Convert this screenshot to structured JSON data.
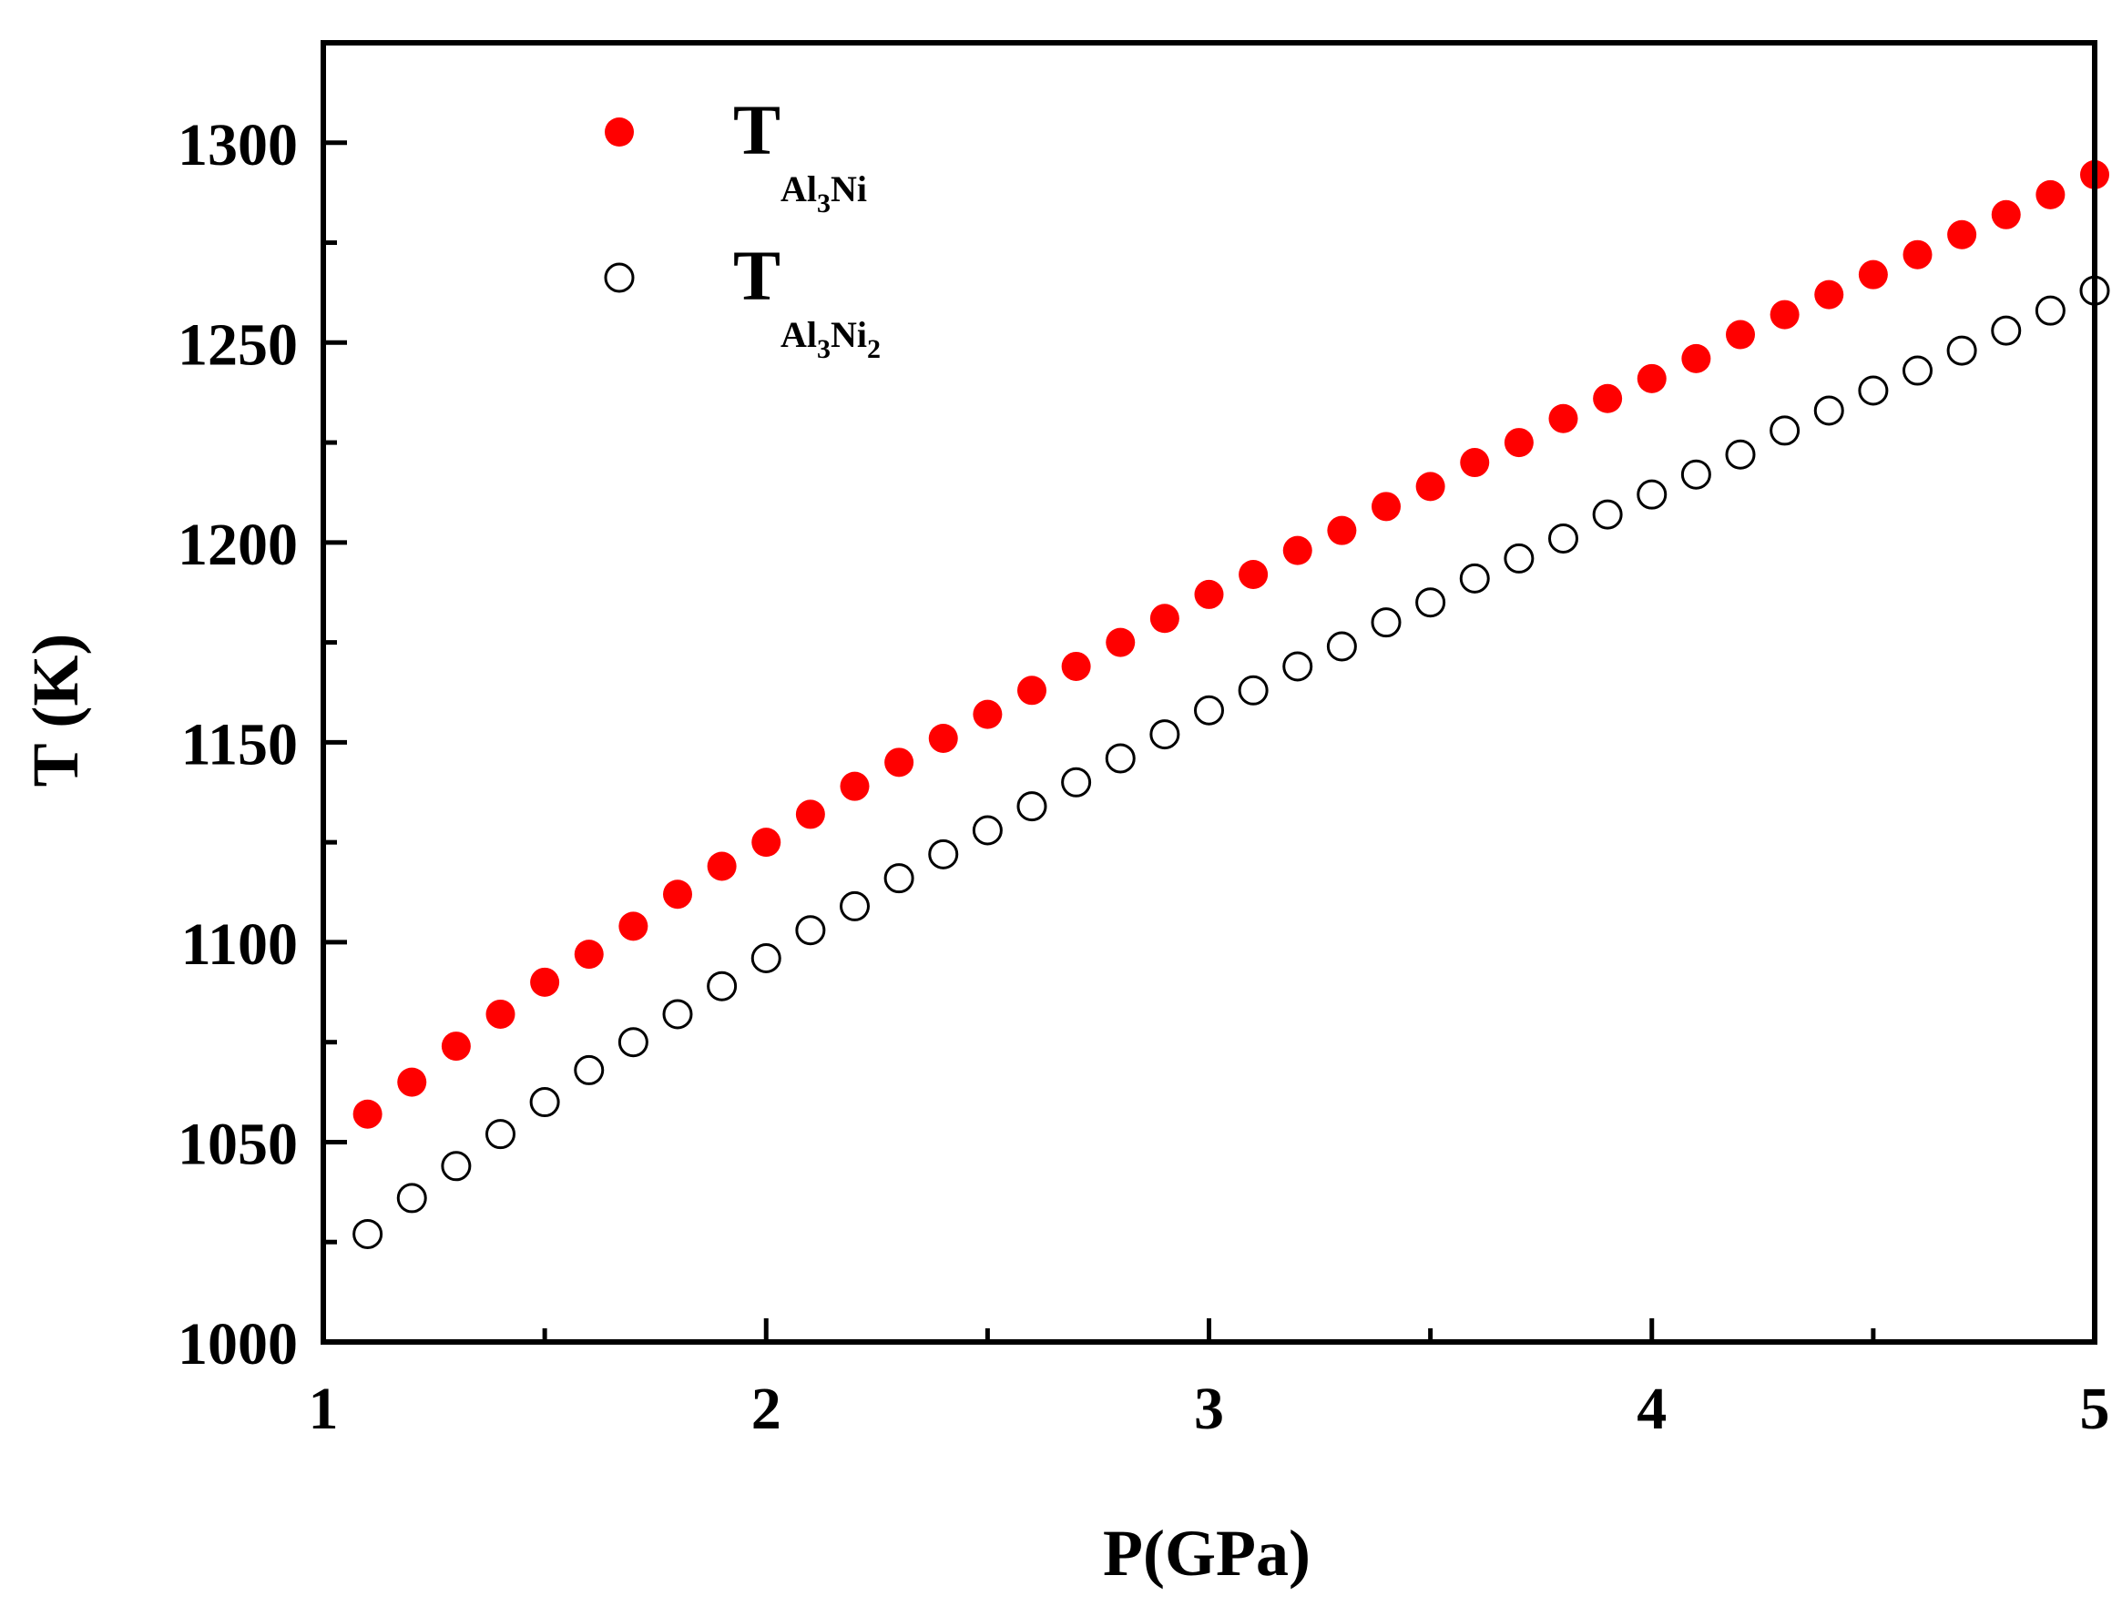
{
  "chart_data": {
    "type": "scatter",
    "title": "",
    "xlabel": "P(GPa)",
    "ylabel": "T (K)",
    "xlim": [
      1,
      5
    ],
    "ylim": [
      1000,
      1325
    ],
    "x_ticks": [
      1,
      2,
      3,
      4,
      5
    ],
    "x_tick_labels": [
      "1",
      "2",
      "3",
      "4",
      "5"
    ],
    "y_ticks": [
      1000,
      1050,
      1100,
      1150,
      1200,
      1250,
      1300
    ],
    "y_tick_labels": [
      "1000",
      "1050",
      "1100",
      "1150",
      "1200",
      "1250",
      "1300"
    ],
    "legend_position": "top-left",
    "series": [
      {
        "name": "TAl3Ni",
        "legend_main": "T",
        "legend_parts": [
          {
            "text": "Al",
            "shift": "sub"
          },
          {
            "text": "3",
            "shift": "subsub"
          },
          {
            "text": "Ni",
            "shift": "sub"
          }
        ],
        "marker": "filled-circle",
        "color": "#ff0000",
        "x": [
          1.1,
          1.2,
          1.3,
          1.4,
          1.5,
          1.6,
          1.7,
          1.8,
          1.9,
          2.0,
          2.1,
          2.2,
          2.3,
          2.4,
          2.5,
          2.6,
          2.7,
          2.8,
          2.9,
          3.0,
          3.1,
          3.2,
          3.3,
          3.4,
          3.5,
          3.6,
          3.7,
          3.8,
          3.9,
          4.0,
          4.1,
          4.2,
          4.3,
          4.4,
          4.5,
          4.6,
          4.7,
          4.8,
          4.9,
          5.0
        ],
        "values": [
          1057,
          1065,
          1074,
          1082,
          1090,
          1097,
          1104,
          1112,
          1119,
          1125,
          1132,
          1139,
          1145,
          1151,
          1157,
          1163,
          1169,
          1175,
          1181,
          1187,
          1192,
          1198,
          1203,
          1209,
          1214,
          1220,
          1225,
          1231,
          1236,
          1241,
          1246,
          1252,
          1257,
          1262,
          1267,
          1272,
          1277,
          1282,
          1287,
          1292
        ]
      },
      {
        "name": "TAl3Ni2",
        "legend_main": "T",
        "legend_parts": [
          {
            "text": "Al",
            "shift": "sub"
          },
          {
            "text": "3",
            "shift": "subsub"
          },
          {
            "text": "Ni",
            "shift": "sub"
          },
          {
            "text": "2",
            "shift": "subsub"
          }
        ],
        "marker": "open-circle",
        "color": "#000000",
        "x": [
          1.1,
          1.2,
          1.3,
          1.4,
          1.5,
          1.6,
          1.7,
          1.8,
          1.9,
          2.0,
          2.1,
          2.2,
          2.3,
          2.4,
          2.5,
          2.6,
          2.7,
          2.8,
          2.9,
          3.0,
          3.1,
          3.2,
          3.3,
          3.4,
          3.5,
          3.6,
          3.7,
          3.8,
          3.9,
          4.0,
          4.1,
          4.2,
          4.3,
          4.4,
          4.5,
          4.6,
          4.7,
          4.8,
          4.9,
          5.0
        ],
        "values": [
          1027,
          1036,
          1044,
          1052,
          1060,
          1068,
          1075,
          1082,
          1089,
          1096,
          1103,
          1109,
          1116,
          1122,
          1128,
          1134,
          1140,
          1146,
          1152,
          1158,
          1163,
          1169,
          1174,
          1180,
          1185,
          1191,
          1196,
          1201,
          1207,
          1212,
          1217,
          1222,
          1228,
          1233,
          1238,
          1243,
          1248,
          1253,
          1258,
          1263
        ]
      }
    ]
  }
}
